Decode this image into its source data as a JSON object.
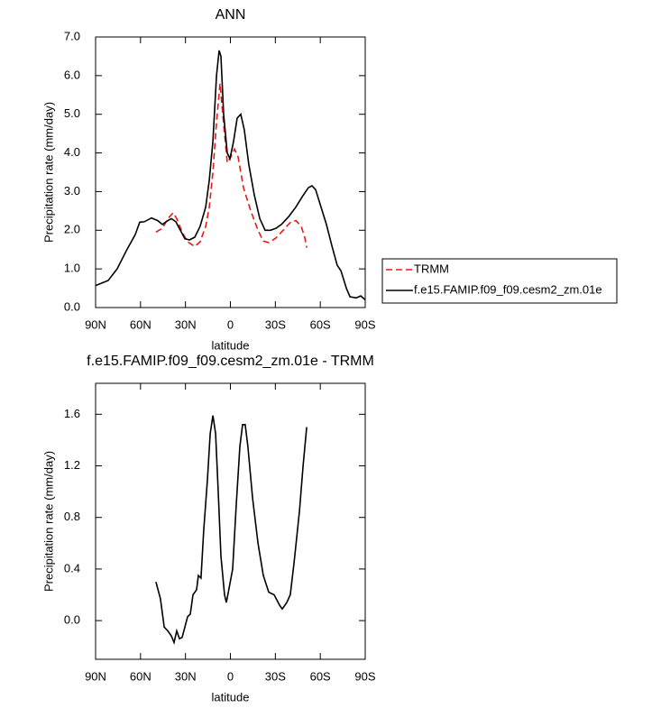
{
  "chart_data": [
    {
      "type": "line",
      "title": "ANN",
      "xlabel": "latitude",
      "ylabel": "Precipitation rate (mm/day)",
      "xlim": [
        90,
        -90
      ],
      "xticks": [
        {
          "value": 90,
          "label": "90N"
        },
        {
          "value": 60,
          "label": "60N"
        },
        {
          "value": 30,
          "label": "30N"
        },
        0,
        {
          "value": -30,
          "label": "30S"
        },
        {
          "value": -60,
          "label": "60S"
        },
        {
          "value": -90,
          "label": "90S"
        }
      ],
      "ylim": [
        0,
        7
      ],
      "yticks": [
        {
          "value": 0,
          "label": "0.0"
        },
        {
          "value": 1,
          "label": "1.0"
        },
        {
          "value": 2,
          "label": "2.0"
        },
        {
          "value": 3,
          "label": "3.0"
        },
        {
          "value": 4,
          "label": "4.0"
        },
        {
          "value": 5,
          "label": "5.0"
        },
        {
          "value": 6,
          "label": "6.0"
        },
        {
          "value": 7,
          "label": "7.0"
        }
      ],
      "legend": "outside right",
      "series": [
        {
          "name": "TRMM",
          "color": "#e8191c",
          "line_style": "dashed",
          "x": [
            49.7,
            45.4,
            41.8,
            38.2,
            35.8,
            32.2,
            28.6,
            23.8,
            20.2,
            16.5,
            14.1,
            11.7,
            9.3,
            6.9,
            5.1,
            2.1,
            -0.3,
            -2.7,
            -5.1,
            -8.7,
            -13.6,
            -18.4,
            -22,
            -25.6,
            -30.4,
            -35.2,
            -40,
            -43.7,
            -47.3,
            -49.7,
            -50.9
          ],
          "values": [
            1.95,
            2.05,
            2.3,
            2.45,
            2.3,
            1.95,
            1.7,
            1.58,
            1.7,
            2.1,
            2.6,
            3.5,
            4.8,
            5.8,
            5.0,
            3.75,
            3.9,
            4.1,
            3.9,
            3.1,
            2.5,
            2.0,
            1.72,
            1.68,
            1.8,
            2.0,
            2.2,
            2.25,
            2.1,
            1.8,
            1.55
          ]
        },
        {
          "name": "f.e15.FAMIP.f09_f09.cesm2_zm.01e",
          "color": "#000000",
          "line_style": "solid",
          "x": [
            90,
            81.6,
            75.6,
            69.5,
            63.5,
            60.5,
            57.5,
            52.7,
            48.5,
            45.4,
            41.8,
            39.4,
            36.4,
            33.4,
            30.4,
            27.4,
            23.8,
            20.2,
            16.5,
            14.1,
            11.7,
            9.3,
            7.5,
            6.3,
            4.5,
            2.1,
            0.3,
            -2.1,
            -4.5,
            -6.9,
            -9.3,
            -12.3,
            -16,
            -19.6,
            -23.2,
            -26.8,
            -30.4,
            -34,
            -38.8,
            -43.7,
            -48.5,
            -52.1,
            -54.5,
            -56.9,
            -60.5,
            -64.1,
            -67.7,
            -71.3,
            -73.8,
            -77.4,
            -79.8,
            -84,
            -87,
            -90
          ],
          "values": [
            0.57,
            0.7,
            1.0,
            1.47,
            1.89,
            2.21,
            2.22,
            2.32,
            2.25,
            2.15,
            2.25,
            2.3,
            2.22,
            2.0,
            1.78,
            1.75,
            1.82,
            2.1,
            2.6,
            3.3,
            4.3,
            6.0,
            6.65,
            6.5,
            5.0,
            4.0,
            3.85,
            4.3,
            4.9,
            5.0,
            4.6,
            3.7,
            2.9,
            2.3,
            2.0,
            2.0,
            2.05,
            2.15,
            2.35,
            2.6,
            2.9,
            3.1,
            3.15,
            3.05,
            2.6,
            2.15,
            1.6,
            1.1,
            0.95,
            0.5,
            0.28,
            0.25,
            0.3,
            0.2
          ]
        }
      ]
    },
    {
      "type": "line",
      "title": "f.e15.FAMIP.f09_f09.cesm2_zm.01e - TRMM",
      "xlabel": "latitude",
      "ylabel": "Precipitation rate (mm/day)",
      "xlim": [
        90,
        -90
      ],
      "xticks": [
        {
          "value": 90,
          "label": "90N"
        },
        {
          "value": 60,
          "label": "60N"
        },
        {
          "value": 30,
          "label": "30N"
        },
        0,
        {
          "value": -30,
          "label": "30S"
        },
        {
          "value": -60,
          "label": "60S"
        },
        {
          "value": -90,
          "label": "90S"
        }
      ],
      "ylim": [
        -0.3,
        1.84
      ],
      "yticks": [
        {
          "value": 0,
          "label": "0.0"
        },
        0.4,
        0.8,
        1.2,
        1.6
      ],
      "series": [
        {
          "color": "#000000",
          "line_style": "solid",
          "x": [
            49.7,
            46.7,
            44.2,
            41.8,
            39.4,
            37.6,
            35.8,
            34,
            32.2,
            30.4,
            28.6,
            26.8,
            25,
            22.6,
            21.4,
            19.6,
            17.8,
            15.3,
            13.5,
            11.7,
            9.9,
            8.1,
            6.3,
            3.9,
            2.7,
            0.9,
            -1.5,
            -3.9,
            -6.3,
            -8.1,
            -9.9,
            -11.7,
            -14.8,
            -18.4,
            -22,
            -25.6,
            -29.2,
            -32.8,
            -34.6,
            -37.6,
            -40,
            -42.5,
            -46.1,
            -48.5,
            -50.9
          ],
          "values": [
            0.3,
            0.17,
            -0.05,
            -0.08,
            -0.12,
            -0.17,
            -0.08,
            -0.14,
            -0.13,
            -0.05,
            0.03,
            0.05,
            0.2,
            0.24,
            0.35,
            0.33,
            0.7,
            1.1,
            1.45,
            1.59,
            1.45,
            1.0,
            0.5,
            0.2,
            0.14,
            0.25,
            0.4,
            0.9,
            1.35,
            1.52,
            1.52,
            1.35,
            0.95,
            0.6,
            0.35,
            0.22,
            0.2,
            0.12,
            0.09,
            0.14,
            0.2,
            0.45,
            0.85,
            1.2,
            1.5
          ]
        }
      ]
    }
  ]
}
